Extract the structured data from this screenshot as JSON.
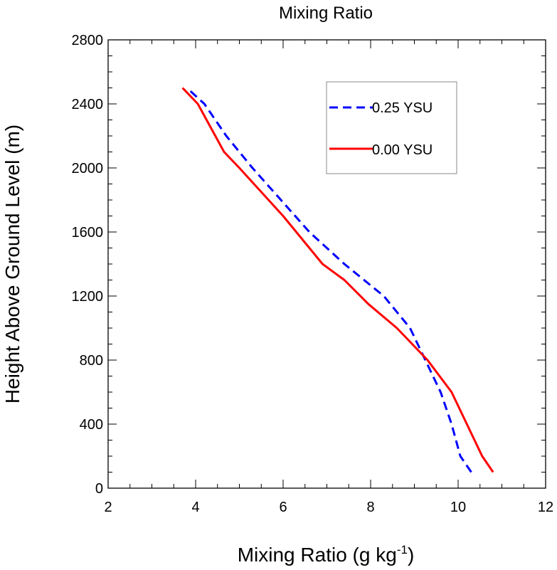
{
  "chart_data": {
    "type": "line",
    "title": "Mixing Ratio",
    "xlabel": "Mixing Ratio (g kg",
    "xlabel_superscript": "-1",
    "xlabel_suffix": ")",
    "ylabel": "Height Above Ground Level (m)",
    "xlim": [
      2,
      12
    ],
    "ylim": [
      0,
      2800
    ],
    "xticks": [
      2,
      4,
      6,
      8,
      10,
      12
    ],
    "yticks": [
      0,
      400,
      800,
      1200,
      1600,
      2000,
      2400,
      2800
    ],
    "grid": false,
    "legend_position": "top-right",
    "series": [
      {
        "name": "0.25 YSU",
        "color": "#0000ff",
        "style": "dashed",
        "points": [
          [
            10.3,
            100
          ],
          [
            10.05,
            200
          ],
          [
            9.85,
            400
          ],
          [
            9.6,
            600
          ],
          [
            9.25,
            800
          ],
          [
            8.9,
            1000
          ],
          [
            8.3,
            1200
          ],
          [
            7.4,
            1400
          ],
          [
            6.6,
            1600
          ],
          [
            5.95,
            1800
          ],
          [
            5.3,
            2000
          ],
          [
            4.7,
            2200
          ],
          [
            4.2,
            2400
          ],
          [
            3.8,
            2500
          ]
        ]
      },
      {
        "name": "0.00 YSU",
        "color": "#ff0000",
        "style": "solid",
        "points": [
          [
            10.8,
            100
          ],
          [
            10.55,
            200
          ],
          [
            10.2,
            400
          ],
          [
            9.85,
            600
          ],
          [
            9.3,
            800
          ],
          [
            8.6,
            1000
          ],
          [
            7.95,
            1150
          ],
          [
            7.4,
            1300
          ],
          [
            6.9,
            1400
          ],
          [
            6.0,
            1700
          ],
          [
            5.0,
            2000
          ],
          [
            4.65,
            2100
          ],
          [
            4.05,
            2400
          ],
          [
            3.7,
            2500
          ]
        ]
      }
    ]
  }
}
